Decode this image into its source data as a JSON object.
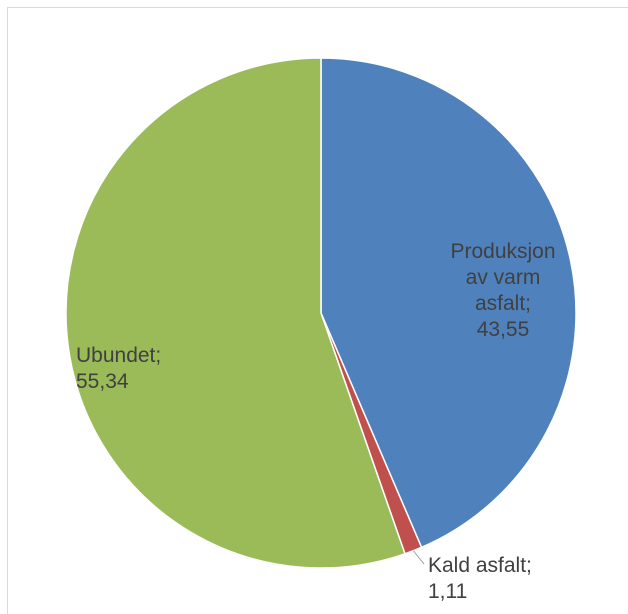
{
  "chart_data": {
    "type": "pie",
    "title": "",
    "legend": "none",
    "slices": [
      {
        "label_lines": [
          "Produksjon",
          "av varm",
          "asfalt;",
          "43,55"
        ],
        "value": 43.55,
        "color": "#4f81bd"
      },
      {
        "label_lines": [
          "Kald asfalt;",
          "1,11"
        ],
        "value": 1.11,
        "color": "#c0504d"
      },
      {
        "label_lines": [
          "Ubundet;",
          "55,34"
        ],
        "value": 55.34,
        "color": "#9bbb59"
      }
    ]
  }
}
